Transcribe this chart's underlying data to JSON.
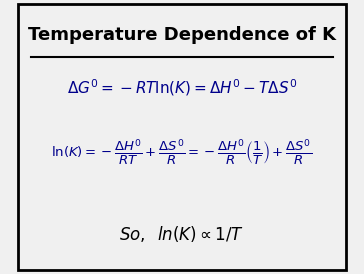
{
  "title": "Temperature Dependence of K",
  "bg_color": "#f0f0f0",
  "border_color": "#000000",
  "title_color": "#000000",
  "eq1_color": "#00008B",
  "eq2_color": "#00008B",
  "eq3_color": "#000000",
  "title_fontsize": 13,
  "eq1_fontsize": 11,
  "eq2_fontsize": 9.5,
  "eq3_fontsize": 12,
  "figsize": [
    3.64,
    2.74
  ],
  "dpi": 100
}
